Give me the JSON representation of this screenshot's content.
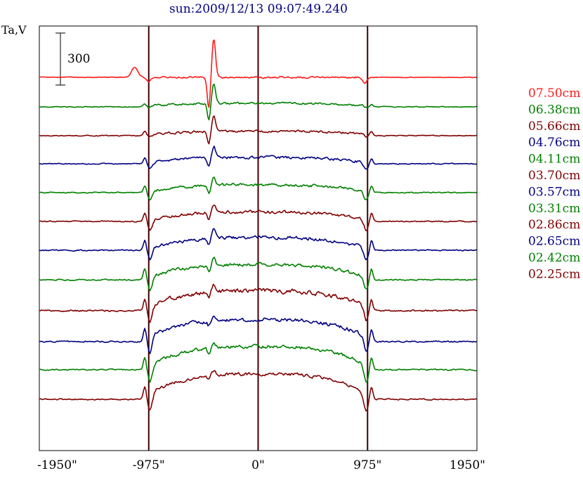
{
  "chart_data": {
    "type": "line",
    "title": "sun:2009/12/13 09:07:49.240",
    "ylabel": "Ta,V",
    "scale_bar_label": "300",
    "xlim": [
      -1950,
      1950
    ],
    "x_ticks": [
      {
        "value": -1950,
        "label": "-1950\""
      },
      {
        "value": -975,
        "label": "-975\""
      },
      {
        "value": 0,
        "label": "0\""
      },
      {
        "value": 975,
        "label": "975\""
      },
      {
        "value": 1950,
        "label": "1950\""
      }
    ],
    "vertical_lines_at": [
      -975,
      0,
      975
    ],
    "series": [
      {
        "name": "07.50cm",
        "color": "#ff1a1a",
        "baseline": 110,
        "disk": 0,
        "limb": 0,
        "step": 0,
        "burst": 55,
        "noise": 1.2,
        "hump": true
      },
      {
        "name": "06.38cm",
        "color": "#008000",
        "baseline": 152,
        "disk": 6,
        "limb": 4,
        "step": 3,
        "burst": 28,
        "noise": 1.5
      },
      {
        "name": "05.66cm",
        "color": "#800000",
        "baseline": 193,
        "disk": 8,
        "limb": 6,
        "step": 5,
        "burst": 22,
        "noise": 1.6
      },
      {
        "name": "04.76cm",
        "color": "#000080",
        "baseline": 233,
        "disk": 14,
        "limb": 8,
        "step": 14,
        "burst": 16,
        "noise": 2.0
      },
      {
        "name": "04.11cm",
        "color": "#008000",
        "baseline": 274,
        "disk": 18,
        "limb": 10,
        "step": 20,
        "burst": 14,
        "noise": 2.0
      },
      {
        "name": "03.70cm",
        "color": "#800000",
        "baseline": 315,
        "disk": 22,
        "limb": 12,
        "step": 24,
        "burst": 12,
        "noise": 2.2
      },
      {
        "name": "03.57cm",
        "color": "#000080",
        "baseline": 356,
        "disk": 28,
        "limb": 14,
        "step": 28,
        "burst": 12,
        "noise": 2.4
      },
      {
        "name": "03.31cm",
        "color": "#008000",
        "baseline": 398,
        "disk": 32,
        "limb": 16,
        "step": 30,
        "burst": 10,
        "noise": 2.4
      },
      {
        "name": "02.86cm",
        "color": "#800000",
        "baseline": 442,
        "disk": 40,
        "limb": 16,
        "step": 34,
        "burst": 12,
        "noise": 3.2
      },
      {
        "name": "02.65cm",
        "color": "#000080",
        "baseline": 486,
        "disk": 44,
        "limb": 18,
        "step": 36,
        "burst": 8,
        "noise": 2.8
      },
      {
        "name": "02.42cm",
        "color": "#008000",
        "baseline": 526,
        "disk": 46,
        "limb": 18,
        "step": 38,
        "burst": 8,
        "noise": 2.6
      },
      {
        "name": "02.25cm",
        "color": "#800000",
        "baseline": 568,
        "disk": 50,
        "limb": 18,
        "step": 40,
        "burst": 6,
        "noise": 2.4
      }
    ],
    "grid": false,
    "legend": "right"
  }
}
